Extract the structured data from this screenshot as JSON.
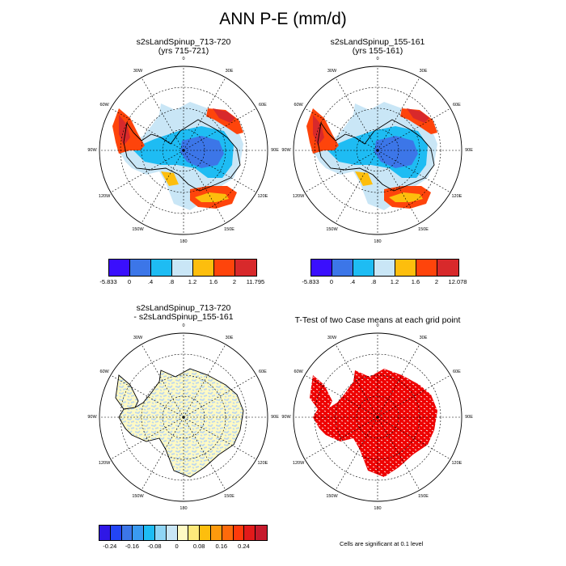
{
  "title": "ANN P-E (mm/d)",
  "panels": [
    {
      "title1": "s2sLandSpinup_713-720",
      "title2": "(yrs 715-721)"
    },
    {
      "title1": "s2sLandSpinup_155-161",
      "title2": "(yrs 155-161)"
    },
    {
      "title1": "s2sLandSpinup_713-720",
      "title2": "- s2sLandSpinup_155-161"
    },
    {
      "title1": "T-Test of two Case means at each grid point",
      "title2": ""
    }
  ],
  "lon_labels": [
    "0",
    "30E",
    "60E",
    "90E",
    "120E",
    "150E",
    "180",
    "150W",
    "120W",
    "90W",
    "60W",
    "30W"
  ],
  "colorbar1": {
    "colors": [
      "#3a0ffd",
      "#3c76e8",
      "#1ebcf3",
      "#c9e6f6",
      "#fdbe0d",
      "#fe440b",
      "#d8292b"
    ],
    "labels": [
      "-5.833",
      "0",
      ".4",
      ".8",
      "1.2",
      "1.6",
      "2",
      "11.795"
    ]
  },
  "colorbar2": {
    "colors": [
      "#3a0ffd",
      "#3c76e8",
      "#1ebcf3",
      "#c9e6f6",
      "#fdbe0d",
      "#fe440b",
      "#d8292b"
    ],
    "labels": [
      "-5.833",
      "0",
      ".4",
      ".8",
      "1.2",
      "1.6",
      "2",
      "12.078"
    ]
  },
  "colorbar3": {
    "colors": [
      "#2f17e6",
      "#2345f5",
      "#3c76e8",
      "#3a9af0",
      "#1ebcf3",
      "#8fd5f5",
      "#c9e6f6",
      "#fffac4",
      "#fde97a",
      "#fdbe0d",
      "#fd9a0d",
      "#fe6a0b",
      "#fe3a0b",
      "#e21a1a",
      "#c61a2c"
    ],
    "labels": [
      "-0.24",
      "-0.16",
      "-0.08",
      "0",
      "0.08",
      "0.16",
      "0.24"
    ]
  },
  "footnote": "Cells are significant at 0.1 level"
}
